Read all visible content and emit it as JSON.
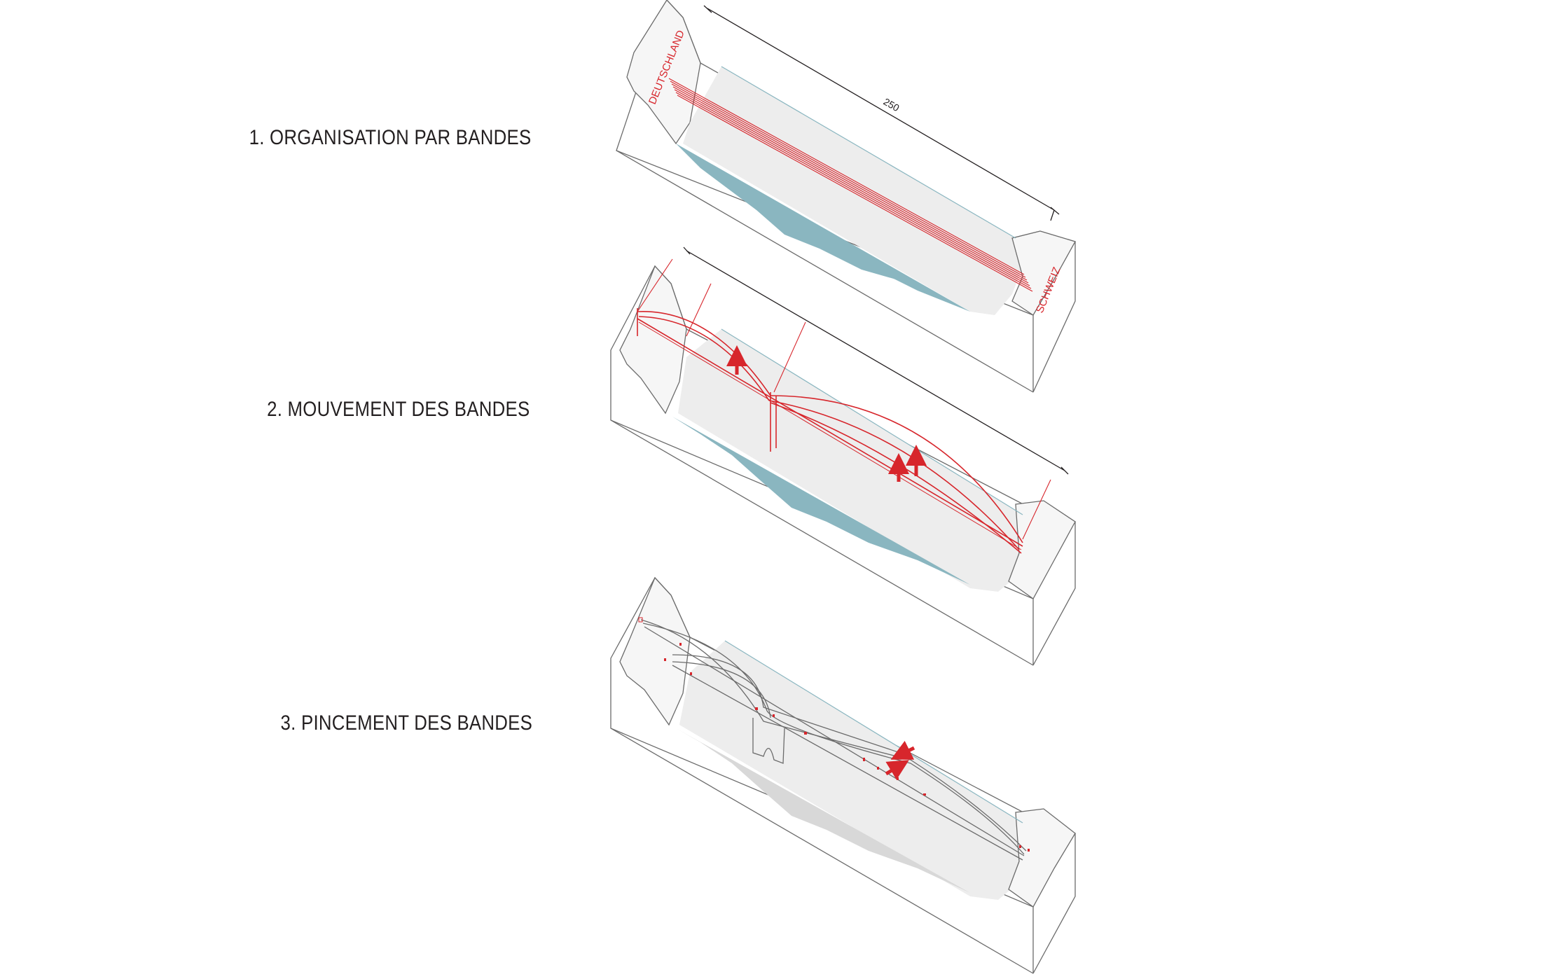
{
  "steps": [
    {
      "label": "1. ORGANISATION PAR BANDES"
    },
    {
      "label": "2. MOUVEMENT DES BANDES"
    },
    {
      "label": "3.  PINCEMENT DES BANDES"
    }
  ],
  "annotations": {
    "germany": "DEUTSCHLAND",
    "switzerland": "SCHWEIZ",
    "span_dimension": "250"
  },
  "colors": {
    "band_red": "#d7262c",
    "water": "#8ab6c0",
    "riverbank": "#ededed",
    "block_line": "#6b6b6b",
    "text": "#231f20"
  }
}
